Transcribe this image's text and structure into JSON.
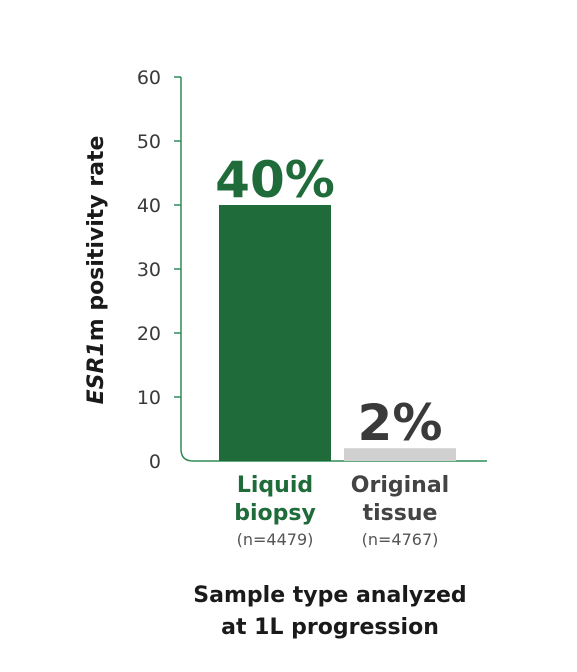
{
  "chart_data": {
    "type": "bar",
    "categories": [
      {
        "line1": "Liquid",
        "line2": "biopsy",
        "n": "(n=4479)",
        "color": "#1f6b3a",
        "label_color": "#1f6b3a"
      },
      {
        "line1": "Original",
        "line2": "tissue",
        "n": "(n=4767)",
        "color": "#d0d0d0",
        "label_color": "#444444"
      }
    ],
    "values": [
      40,
      2
    ],
    "value_labels": [
      "40%",
      "2%"
    ],
    "value_label_colors": [
      "#1f6b3a",
      "#3a3a3a"
    ],
    "ylim": [
      0,
      60
    ],
    "yticks": [
      "0",
      "10",
      "20",
      "30",
      "40",
      "50",
      "60"
    ],
    "ylabel_italic": "ESR1",
    "ylabel_rest": "m positivity rate",
    "xlabel_line1": "Sample type analyzed",
    "xlabel_line2": "at 1L progression",
    "axis_color": "#2e8b57",
    "grid": false
  }
}
